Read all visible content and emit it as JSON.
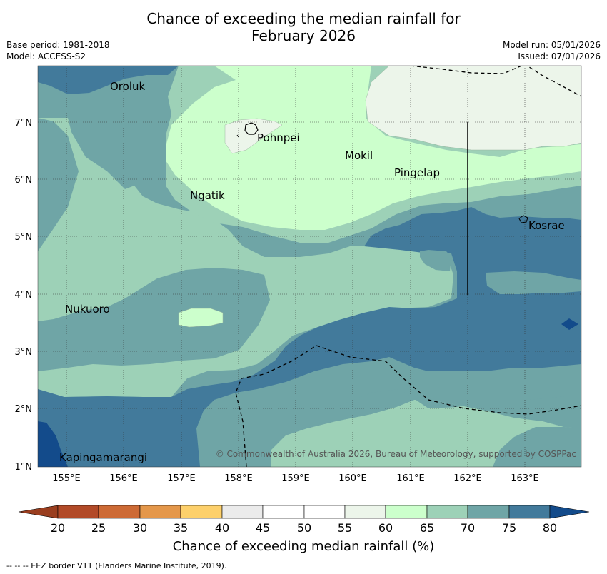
{
  "title_line1": "Chance of exceeding the median rainfall for",
  "title_line2": "February 2026",
  "base_period": "Base period: 1981-2018",
  "model": "Model: ACCESS-S2",
  "model_run": "Model run: 05/01/2026",
  "issued": "Issued: 07/01/2026",
  "copyright": "© Commonwealth of Australia 2026, Bureau of Meteorology, supported by COSPPac",
  "lon_ticks": [
    "155°E",
    "156°E",
    "157°E",
    "158°E",
    "159°E",
    "160°E",
    "161°E",
    "162°E",
    "163°E"
  ],
  "lat_ticks": [
    "1°N",
    "2°N",
    "3°N",
    "4°N",
    "5°N",
    "6°N",
    "7°N"
  ],
  "places": [
    {
      "name": "Oroluk"
    },
    {
      "name": "Pohnpei"
    },
    {
      "name": "Mokil"
    },
    {
      "name": "Pingelap"
    },
    {
      "name": "Ngatik"
    },
    {
      "name": "Kosrae"
    },
    {
      "name": "Nukuoro"
    },
    {
      "name": "Kapingamarangi"
    }
  ],
  "colorbar": {
    "ticks": [
      "20",
      "25",
      "30",
      "35",
      "40",
      "45",
      "50",
      "55",
      "60",
      "65",
      "70",
      "75",
      "80"
    ],
    "colors": [
      "#9a3e1f",
      "#b24a28",
      "#cd6a35",
      "#e4974a",
      "#fdd06b",
      "#ebebeb",
      "#ffffff",
      "#ffffff",
      "#ecf5ea",
      "#ccffcc",
      "#9dd1b7",
      "#6fa5a6",
      "#427a9b",
      "#134b8b"
    ],
    "label": "Chance of exceeding median rainfall (%)"
  },
  "legend_note": "--  --  -- EEZ border V11 (Flanders Marine Institute, 2019).",
  "map_colors": {
    "band_55_60": "#ecf5ea",
    "band_60_65": "#ccffcc",
    "band_65_70": "#9dd1b7",
    "band_70_75": "#6fa5a6",
    "band_75_80": "#427a9b",
    "band_80_plus": "#134b8b"
  }
}
